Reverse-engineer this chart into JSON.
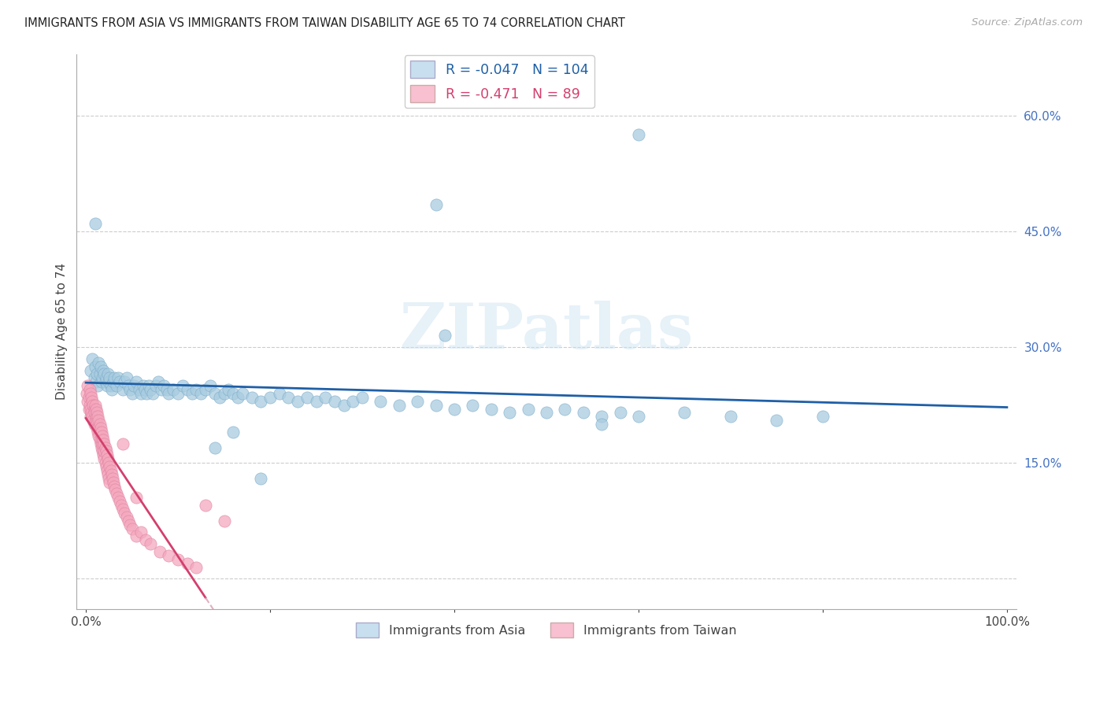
{
  "title": "IMMIGRANTS FROM ASIA VS IMMIGRANTS FROM TAIWAN DISABILITY AGE 65 TO 74 CORRELATION CHART",
  "source": "Source: ZipAtlas.com",
  "ylabel": "Disability Age 65 to 74",
  "legend_blue_label": "Immigrants from Asia",
  "legend_pink_label": "Immigrants from Taiwan",
  "R_blue": -0.047,
  "N_blue": 104,
  "R_pink": -0.471,
  "N_pink": 89,
  "watermark": "ZIPatlas",
  "blue_color": "#a8cce0",
  "pink_color": "#f4a8be",
  "blue_line_color": "#1f5fa6",
  "pink_line_color": "#d43f6e",
  "pink_dash_color": "#e0b0c0",
  "ytick_color": "#4472c4",
  "figsize": [
    14.06,
    8.92
  ],
  "dpi": 100,
  "blue_x": [
    0.005,
    0.007,
    0.009,
    0.01,
    0.011,
    0.012,
    0.013,
    0.014,
    0.015,
    0.016,
    0.017,
    0.018,
    0.019,
    0.02,
    0.021,
    0.022,
    0.023,
    0.024,
    0.025,
    0.026,
    0.027,
    0.028,
    0.03,
    0.031,
    0.033,
    0.035,
    0.037,
    0.04,
    0.042,
    0.044,
    0.046,
    0.048,
    0.05,
    0.052,
    0.055,
    0.058,
    0.06,
    0.062,
    0.064,
    0.066,
    0.068,
    0.07,
    0.073,
    0.076,
    0.079,
    0.082,
    0.085,
    0.088,
    0.09,
    0.095,
    0.1,
    0.105,
    0.11,
    0.115,
    0.12,
    0.125,
    0.13,
    0.135,
    0.14,
    0.145,
    0.15,
    0.155,
    0.16,
    0.165,
    0.17,
    0.18,
    0.19,
    0.2,
    0.21,
    0.22,
    0.23,
    0.24,
    0.25,
    0.26,
    0.27,
    0.28,
    0.29,
    0.3,
    0.32,
    0.34,
    0.36,
    0.38,
    0.4,
    0.42,
    0.44,
    0.46,
    0.48,
    0.5,
    0.52,
    0.54,
    0.56,
    0.58,
    0.6,
    0.65,
    0.7,
    0.75,
    0.8,
    0.01,
    0.38,
    0.6,
    0.39,
    0.19,
    0.14,
    0.16,
    0.56
  ],
  "blue_y": [
    0.27,
    0.285,
    0.26,
    0.275,
    0.255,
    0.265,
    0.25,
    0.28,
    0.265,
    0.275,
    0.255,
    0.26,
    0.27,
    0.265,
    0.255,
    0.26,
    0.25,
    0.265,
    0.255,
    0.26,
    0.25,
    0.245,
    0.255,
    0.26,
    0.25,
    0.26,
    0.255,
    0.245,
    0.255,
    0.26,
    0.25,
    0.245,
    0.24,
    0.25,
    0.255,
    0.245,
    0.24,
    0.25,
    0.245,
    0.24,
    0.25,
    0.245,
    0.24,
    0.25,
    0.255,
    0.245,
    0.25,
    0.245,
    0.24,
    0.245,
    0.24,
    0.25,
    0.245,
    0.24,
    0.245,
    0.24,
    0.245,
    0.25,
    0.24,
    0.235,
    0.24,
    0.245,
    0.24,
    0.235,
    0.24,
    0.235,
    0.23,
    0.235,
    0.24,
    0.235,
    0.23,
    0.235,
    0.23,
    0.235,
    0.23,
    0.225,
    0.23,
    0.235,
    0.23,
    0.225,
    0.23,
    0.225,
    0.22,
    0.225,
    0.22,
    0.215,
    0.22,
    0.215,
    0.22,
    0.215,
    0.21,
    0.215,
    0.21,
    0.215,
    0.21,
    0.205,
    0.21,
    0.46,
    0.485,
    0.575,
    0.315,
    0.13,
    0.17,
    0.19,
    0.2
  ],
  "pink_x": [
    0.001,
    0.002,
    0.002,
    0.003,
    0.003,
    0.004,
    0.004,
    0.005,
    0.005,
    0.005,
    0.006,
    0.006,
    0.007,
    0.007,
    0.008,
    0.008,
    0.009,
    0.009,
    0.009,
    0.01,
    0.01,
    0.011,
    0.011,
    0.011,
    0.012,
    0.012,
    0.012,
    0.013,
    0.013,
    0.014,
    0.014,
    0.014,
    0.015,
    0.015,
    0.015,
    0.016,
    0.016,
    0.017,
    0.017,
    0.017,
    0.018,
    0.018,
    0.018,
    0.019,
    0.019,
    0.02,
    0.02,
    0.02,
    0.021,
    0.021,
    0.022,
    0.022,
    0.023,
    0.023,
    0.024,
    0.024,
    0.025,
    0.025,
    0.026,
    0.026,
    0.027,
    0.028,
    0.029,
    0.03,
    0.031,
    0.032,
    0.033,
    0.035,
    0.037,
    0.038,
    0.04,
    0.042,
    0.044,
    0.046,
    0.048,
    0.05,
    0.055,
    0.06,
    0.065,
    0.07,
    0.08,
    0.09,
    0.1,
    0.11,
    0.12,
    0.04,
    0.055,
    0.13,
    0.15
  ],
  "pink_y": [
    0.24,
    0.23,
    0.25,
    0.235,
    0.22,
    0.245,
    0.225,
    0.24,
    0.22,
    0.21,
    0.235,
    0.215,
    0.23,
    0.21,
    0.225,
    0.205,
    0.22,
    0.2,
    0.215,
    0.225,
    0.205,
    0.22,
    0.2,
    0.21,
    0.215,
    0.195,
    0.205,
    0.21,
    0.19,
    0.205,
    0.185,
    0.195,
    0.2,
    0.18,
    0.19,
    0.195,
    0.175,
    0.19,
    0.17,
    0.18,
    0.185,
    0.165,
    0.175,
    0.18,
    0.16,
    0.175,
    0.155,
    0.165,
    0.17,
    0.15,
    0.165,
    0.145,
    0.16,
    0.14,
    0.155,
    0.135,
    0.15,
    0.13,
    0.145,
    0.125,
    0.14,
    0.135,
    0.13,
    0.125,
    0.12,
    0.115,
    0.11,
    0.105,
    0.1,
    0.095,
    0.09,
    0.085,
    0.08,
    0.075,
    0.07,
    0.065,
    0.055,
    0.06,
    0.05,
    0.045,
    0.035,
    0.03,
    0.025,
    0.02,
    0.015,
    0.175,
    0.105,
    0.095,
    0.075
  ]
}
